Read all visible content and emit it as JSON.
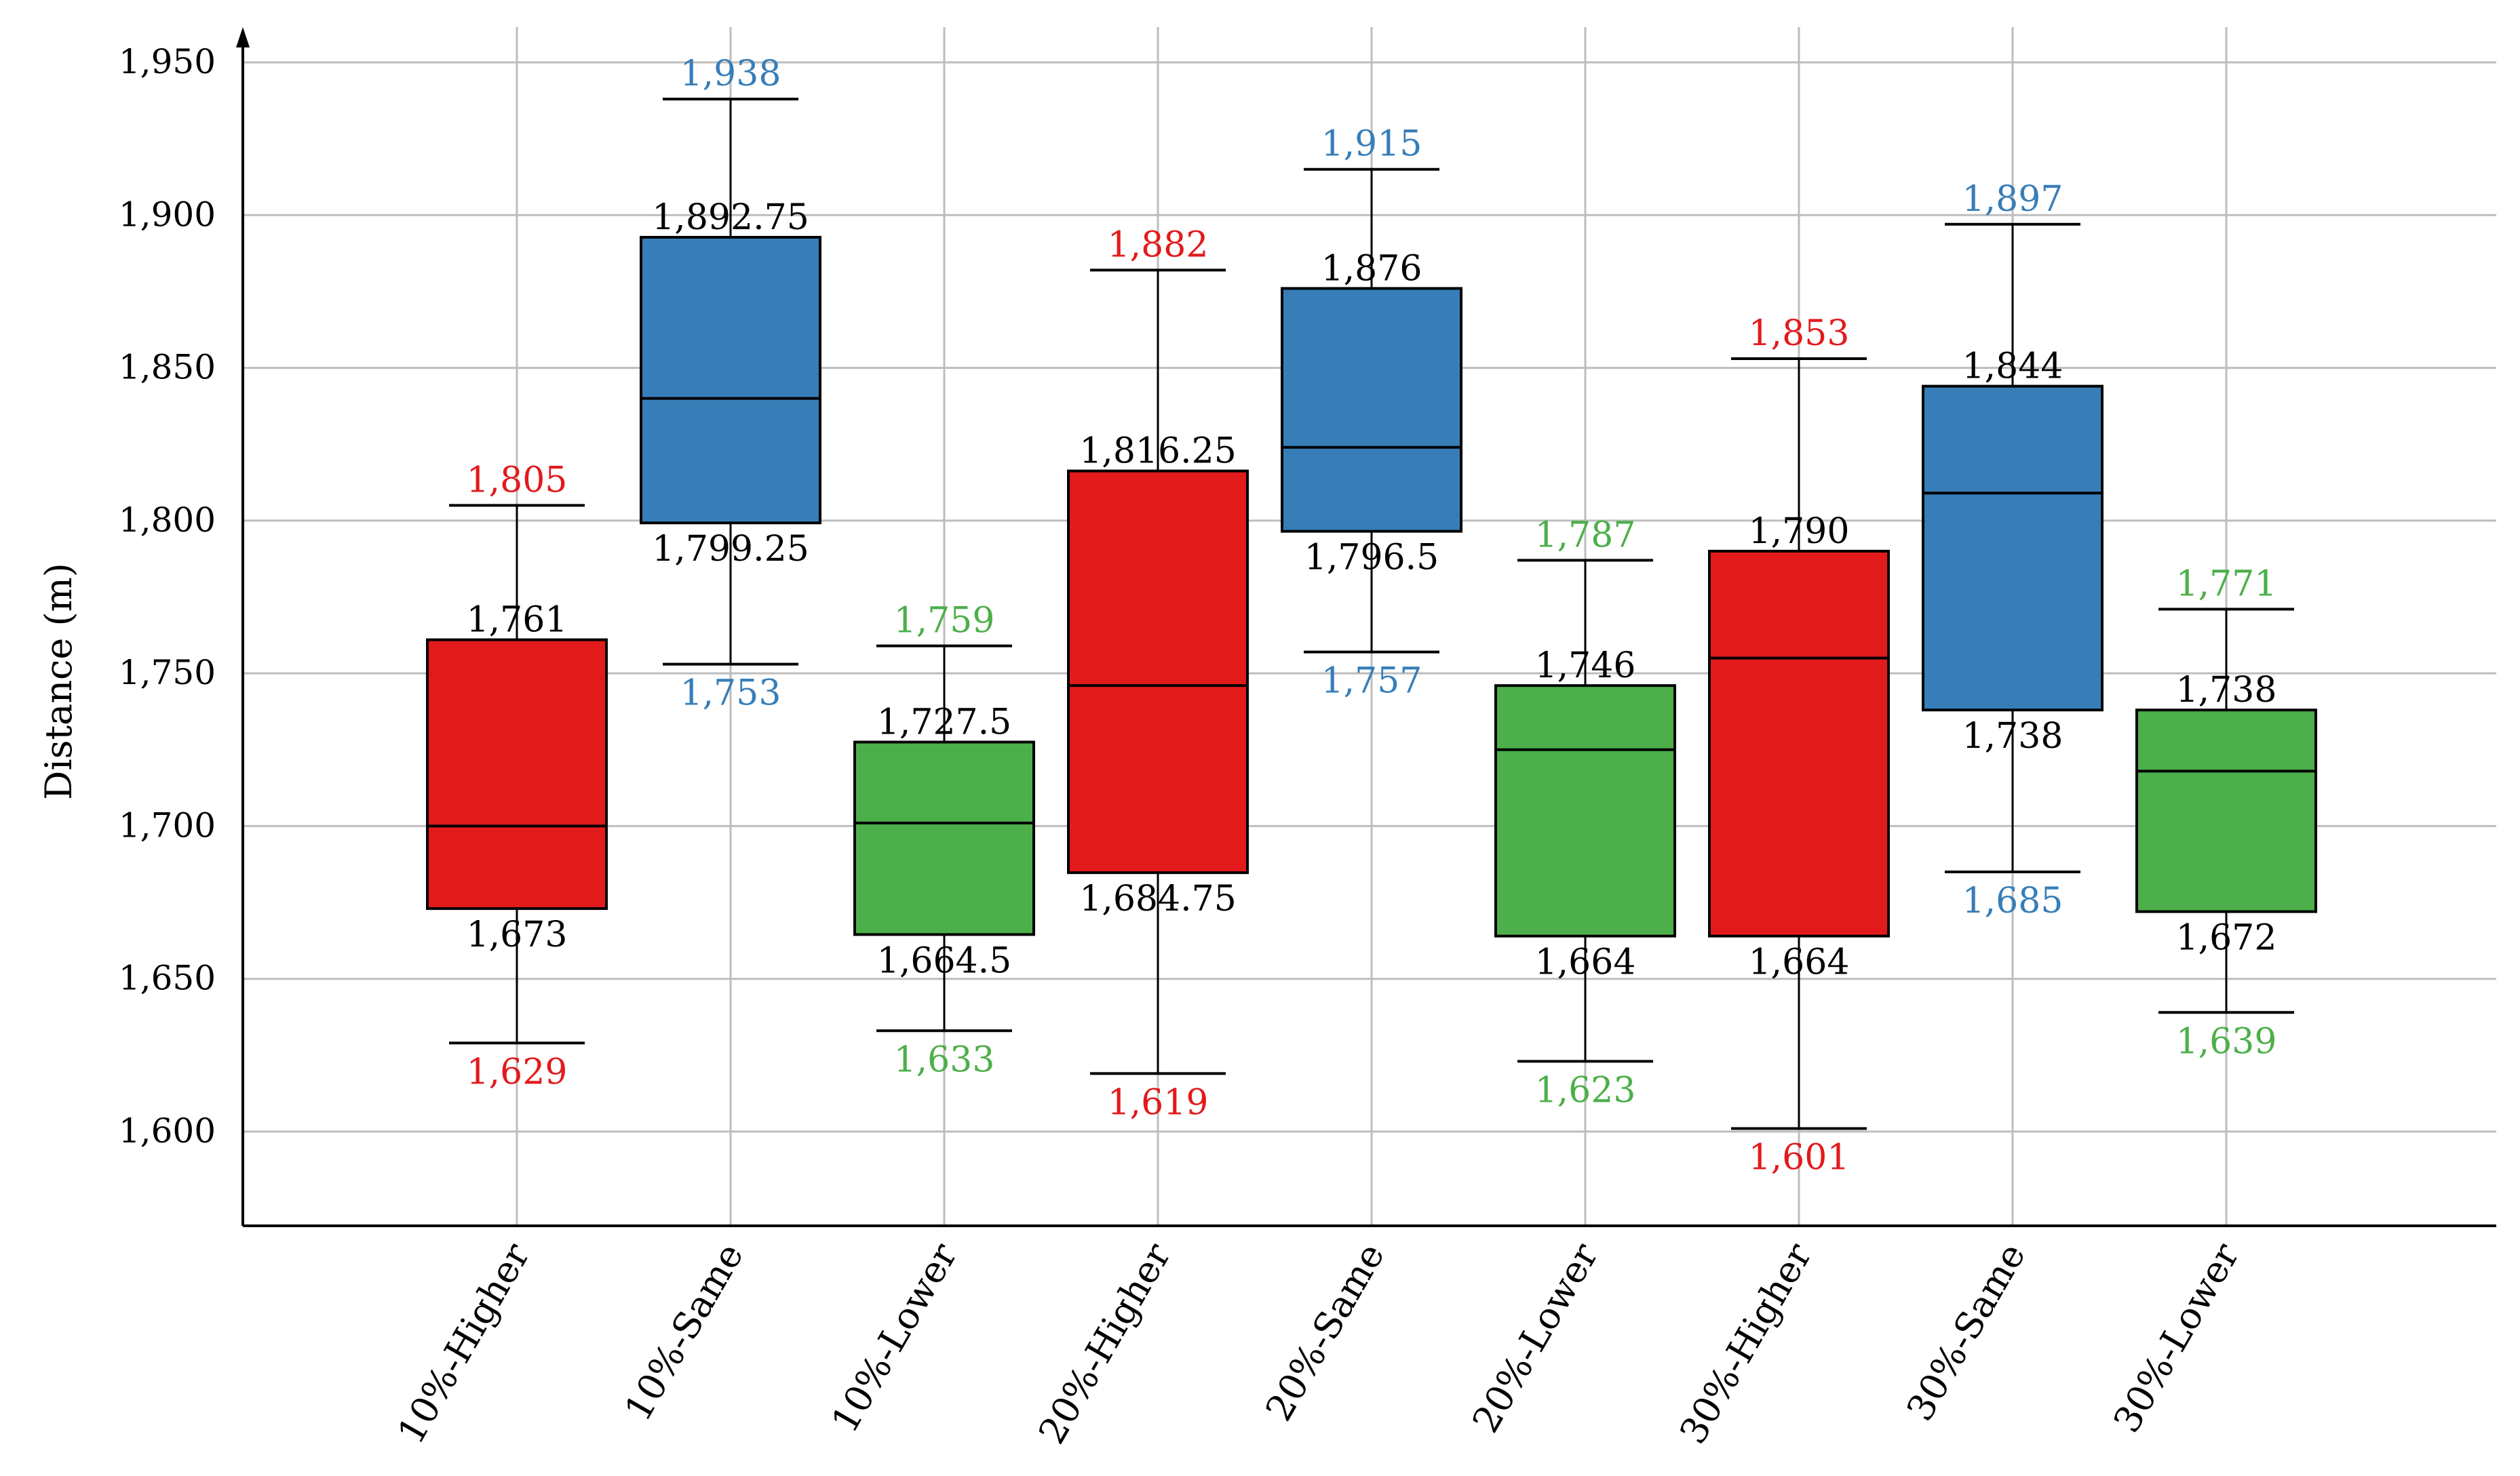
{
  "chart_data": {
    "type": "boxplot",
    "title": "",
    "xlabel": "",
    "ylabel": "Distance (m)",
    "ylim": [
      1585,
      1960
    ],
    "yticks": [
      1600,
      1650,
      1700,
      1750,
      1800,
      1850,
      1900,
      1950
    ],
    "ytick_labels": [
      "1,600",
      "1,650",
      "1,700",
      "1,750",
      "1,800",
      "1,850",
      "1,900",
      "1,950"
    ],
    "grid": true,
    "colors": {
      "Higher": "#e31a1c",
      "Same": "#377eb8",
      "Lower": "#4daf4a",
      "stats_text": "#000000"
    },
    "boxes": [
      {
        "category": "10%-Higher",
        "group": "Higher",
        "min": 1629,
        "q1": 1673,
        "median": 1700,
        "q3": 1761,
        "max": 1805,
        "min_label": "1,629",
        "q1_label": "1,673",
        "q3_label": "1,761",
        "max_label": "1,805"
      },
      {
        "category": "10%-Same",
        "group": "Same",
        "min": 1753,
        "q1": 1799.25,
        "median": 1840,
        "q3": 1892.75,
        "max": 1938,
        "min_label": "1,753",
        "q1_label": "1,799.25",
        "q3_label": "1,892.75",
        "max_label": "1,938"
      },
      {
        "category": "10%-Lower",
        "group": "Lower",
        "min": 1633,
        "q1": 1664.5,
        "median": 1701,
        "q3": 1727.5,
        "max": 1759,
        "min_label": "1,633",
        "q1_label": "1,664.5",
        "q3_label": "1,727.5",
        "max_label": "1,759"
      },
      {
        "category": "20%-Higher",
        "group": "Higher",
        "min": 1619,
        "q1": 1684.75,
        "median": 1746,
        "q3": 1816.25,
        "max": 1882,
        "min_label": "1,619",
        "q1_label": "1,684.75",
        "q3_label": "1,816.25",
        "max_label": "1,882"
      },
      {
        "category": "20%-Same",
        "group": "Same",
        "min": 1757,
        "q1": 1796.5,
        "median": 1824,
        "q3": 1876,
        "max": 1915,
        "min_label": "1,757",
        "q1_label": "1,796.5",
        "q3_label": "1,876",
        "max_label": "1,915"
      },
      {
        "category": "20%-Lower",
        "group": "Lower",
        "min": 1623,
        "q1": 1664,
        "median": 1725,
        "q3": 1746,
        "max": 1787,
        "min_label": "1,623",
        "q1_label": "1,664",
        "q3_label": "1,746",
        "max_label": "1,787"
      },
      {
        "category": "30%-Higher",
        "group": "Higher",
        "min": 1601,
        "q1": 1664,
        "median": 1755,
        "q3": 1790,
        "max": 1853,
        "min_label": "1,601",
        "q1_label": "1,664",
        "q3_label": "1,790",
        "max_label": "1,853"
      },
      {
        "category": "30%-Same",
        "group": "Same",
        "min": 1685,
        "q1": 1738,
        "median": 1809,
        "q3": 1844,
        "max": 1897,
        "min_label": "1,685",
        "q1_label": "1,738",
        "q3_label": "1,844",
        "max_label": "1,897"
      },
      {
        "category": "30%-Lower",
        "group": "Lower",
        "min": 1639,
        "q1": 1672,
        "median": 1718,
        "q3": 1738,
        "max": 1771,
        "min_label": "1,639",
        "q1_label": "1,672",
        "q3_label": "1,738",
        "max_label": "1,771"
      }
    ]
  }
}
